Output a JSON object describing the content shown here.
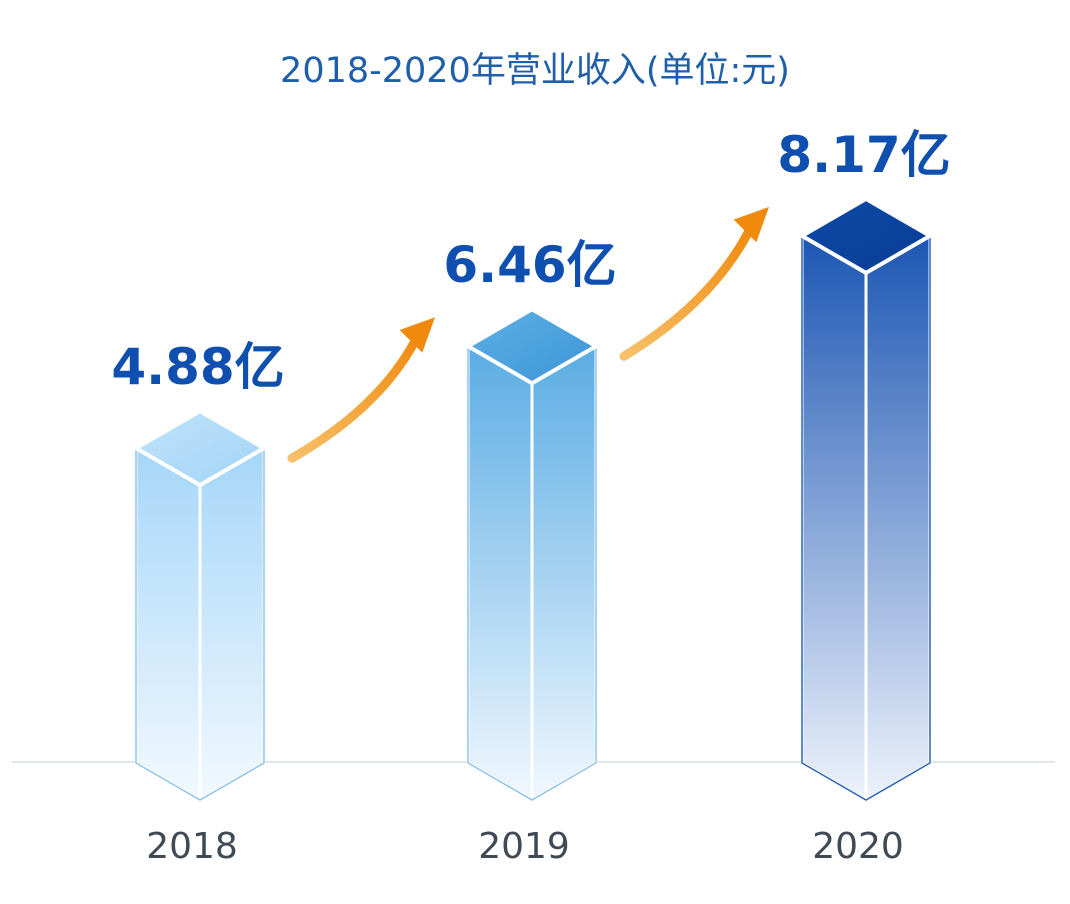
{
  "chart_data": {
    "type": "bar",
    "title": "2018-2020年营业收入(单位:元)",
    "categories": [
      "2018",
      "2019",
      "2020"
    ],
    "values": [
      4.88,
      6.46,
      8.17
    ],
    "value_labels": [
      "4.88亿",
      "6.46亿",
      "8.17亿"
    ],
    "unit": "亿",
    "xlabel": "",
    "ylabel": "",
    "ylim": [
      0,
      9.3
    ],
    "grid": false,
    "legend": "none",
    "colors": {
      "bar_light": "#9fd0f5",
      "bar_mid": "#56a8e0",
      "bar_dark": "#1e58b4",
      "value_text": "#0f4fb0",
      "title_text": "#1f5ea8",
      "arrow": "#f29a1e"
    }
  }
}
